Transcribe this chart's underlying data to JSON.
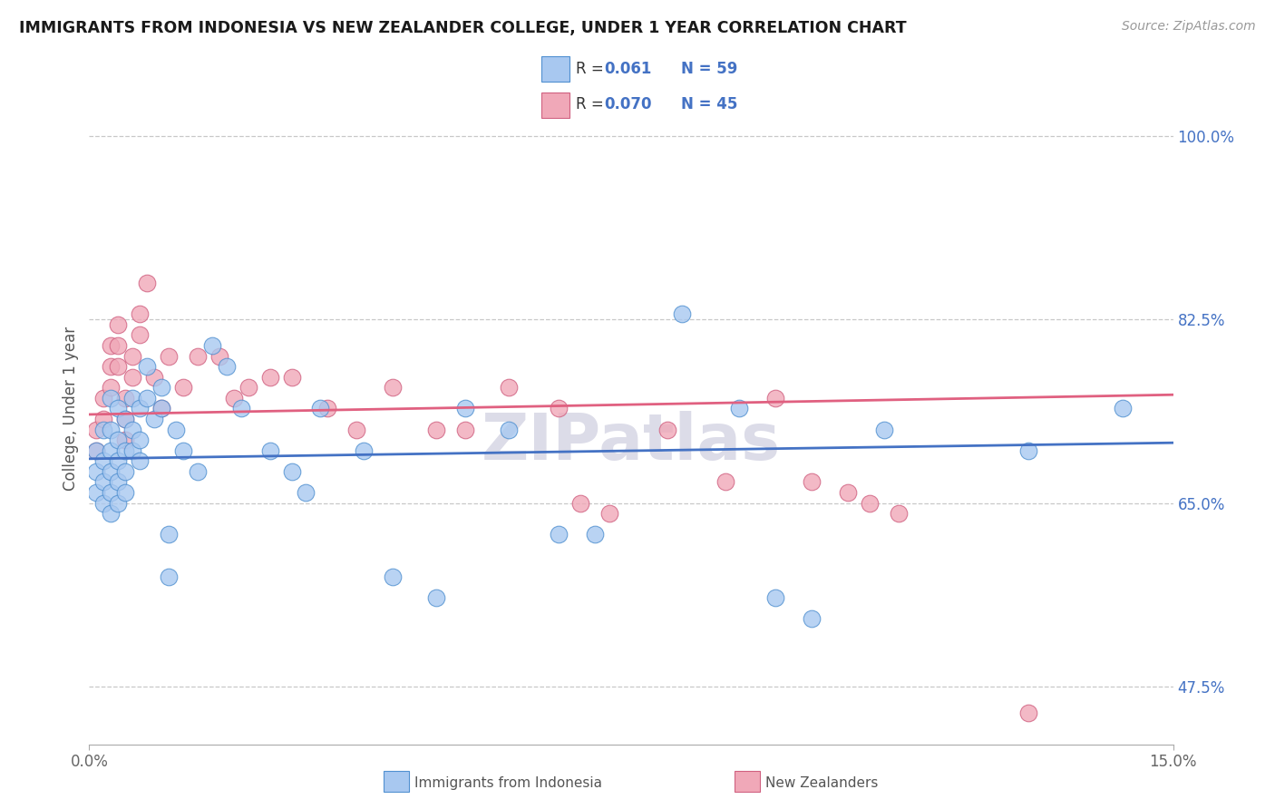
{
  "title": "IMMIGRANTS FROM INDONESIA VS NEW ZEALANDER COLLEGE, UNDER 1 YEAR CORRELATION CHART",
  "source": "Source: ZipAtlas.com",
  "ylabel": "College, Under 1 year",
  "legend_label1": "Immigrants from Indonesia",
  "legend_label2": "New Zealanders",
  "color_blue": "#A8C8F0",
  "color_pink": "#F0A8B8",
  "color_blue_edge": "#5090D0",
  "color_pink_edge": "#D06080",
  "color_blue_line": "#4472C4",
  "color_pink_line": "#E06080",
  "background": "#FFFFFF",
  "grid_color": "#C8C8C8",
  "xlim": [
    0.0,
    0.15
  ],
  "ylim": [
    0.42,
    1.06
  ],
  "ytick_vals": [
    1.0,
    0.825,
    0.65,
    0.475
  ],
  "ytick_labels": [
    "100.0%",
    "82.5%",
    "65.0%",
    "47.5%"
  ],
  "blue_x": [
    0.001,
    0.001,
    0.001,
    0.002,
    0.002,
    0.002,
    0.002,
    0.003,
    0.003,
    0.003,
    0.003,
    0.003,
    0.003,
    0.004,
    0.004,
    0.004,
    0.004,
    0.004,
    0.005,
    0.005,
    0.005,
    0.005,
    0.006,
    0.006,
    0.006,
    0.007,
    0.007,
    0.007,
    0.008,
    0.008,
    0.009,
    0.01,
    0.01,
    0.011,
    0.011,
    0.012,
    0.013,
    0.015,
    0.017,
    0.019,
    0.021,
    0.025,
    0.028,
    0.03,
    0.032,
    0.038,
    0.042,
    0.048,
    0.052,
    0.058,
    0.065,
    0.07,
    0.082,
    0.09,
    0.095,
    0.1,
    0.11,
    0.13,
    0.143
  ],
  "blue_y": [
    0.7,
    0.68,
    0.66,
    0.72,
    0.69,
    0.67,
    0.65,
    0.75,
    0.72,
    0.7,
    0.68,
    0.66,
    0.64,
    0.74,
    0.71,
    0.69,
    0.67,
    0.65,
    0.73,
    0.7,
    0.68,
    0.66,
    0.75,
    0.72,
    0.7,
    0.74,
    0.71,
    0.69,
    0.78,
    0.75,
    0.73,
    0.76,
    0.74,
    0.62,
    0.58,
    0.72,
    0.7,
    0.68,
    0.8,
    0.78,
    0.74,
    0.7,
    0.68,
    0.66,
    0.74,
    0.7,
    0.58,
    0.56,
    0.74,
    0.72,
    0.62,
    0.62,
    0.83,
    0.74,
    0.56,
    0.54,
    0.72,
    0.7,
    0.74
  ],
  "pink_x": [
    0.001,
    0.001,
    0.002,
    0.002,
    0.003,
    0.003,
    0.003,
    0.004,
    0.004,
    0.004,
    0.005,
    0.005,
    0.005,
    0.006,
    0.006,
    0.007,
    0.007,
    0.008,
    0.009,
    0.01,
    0.011,
    0.013,
    0.015,
    0.018,
    0.02,
    0.022,
    0.025,
    0.028,
    0.033,
    0.037,
    0.042,
    0.048,
    0.052,
    0.058,
    0.065,
    0.068,
    0.072,
    0.08,
    0.088,
    0.095,
    0.1,
    0.105,
    0.108,
    0.112,
    0.13
  ],
  "pink_y": [
    0.72,
    0.7,
    0.75,
    0.73,
    0.8,
    0.78,
    0.76,
    0.82,
    0.8,
    0.78,
    0.75,
    0.73,
    0.71,
    0.79,
    0.77,
    0.83,
    0.81,
    0.86,
    0.77,
    0.74,
    0.79,
    0.76,
    0.79,
    0.79,
    0.75,
    0.76,
    0.77,
    0.77,
    0.74,
    0.72,
    0.76,
    0.72,
    0.72,
    0.76,
    0.74,
    0.65,
    0.64,
    0.72,
    0.67,
    0.75,
    0.67,
    0.66,
    0.65,
    0.64,
    0.45
  ],
  "blue_line_x": [
    0.0,
    0.15
  ],
  "blue_line_y": [
    0.68,
    0.71
  ],
  "pink_line_x": [
    0.0,
    0.15
  ],
  "pink_line_y": [
    0.7,
    0.75
  ]
}
